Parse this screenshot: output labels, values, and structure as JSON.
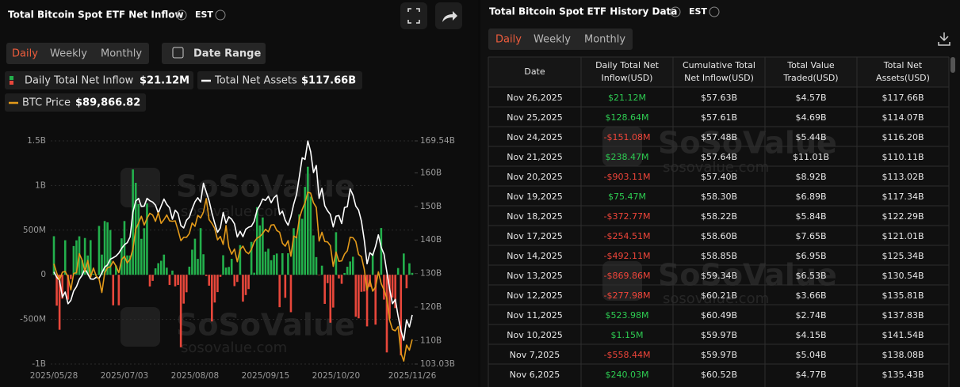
{
  "left_panel": {
    "title": "Total Bitcoin Spot ETF Net Inflow",
    "timezone": "EST",
    "tabs": [
      "Daily",
      "Weekly",
      "Monthly"
    ],
    "date_range": "Date Range",
    "legend_values": [
      "$21.12M",
      "$117.66B",
      "$89,866.82"
    ]
  },
  "watermark": {
    "brand": "SoSoValue",
    "url": "sosovalue.com"
  },
  "chart_data": {
    "type": "bar",
    "grid": true,
    "categories": [
      "2025/05/28",
      null,
      null,
      null,
      null,
      null,
      null,
      null,
      null,
      null,
      null,
      null,
      null,
      null,
      null,
      null,
      null,
      null,
      null,
      null,
      null,
      null,
      null,
      null,
      null,
      "2025/07/03",
      null,
      null,
      null,
      null,
      null,
      null,
      null,
      null,
      null,
      null,
      null,
      null,
      null,
      null,
      null,
      null,
      null,
      null,
      null,
      null,
      null,
      null,
      null,
      null,
      "2025/08/08",
      null,
      null,
      null,
      null,
      null,
      null,
      null,
      null,
      null,
      null,
      null,
      null,
      null,
      null,
      null,
      null,
      null,
      null,
      null,
      null,
      null,
      null,
      null,
      null,
      "2025/09/15",
      null,
      null,
      null,
      null,
      null,
      null,
      null,
      null,
      null,
      null,
      null,
      null,
      null,
      null,
      null,
      null,
      null,
      null,
      null,
      null,
      null,
      null,
      null,
      null,
      "2025/10/20",
      null,
      null,
      null,
      null,
      null,
      null,
      null,
      null,
      null,
      null,
      null,
      null,
      null,
      null,
      null,
      null,
      null,
      null,
      null,
      null,
      null,
      null,
      null,
      null,
      null,
      null,
      "2025/11/26"
    ],
    "ylim": [
      -1000,
      1500
    ],
    "yticks": [
      {
        "value": 1500,
        "label": "1.5B"
      },
      {
        "value": 1000,
        "label": "1B"
      },
      {
        "value": 500,
        "label": "500M"
      },
      0,
      {
        "value": -500,
        "label": "-500M"
      },
      {
        "value": -1000,
        "label": "-1B"
      }
    ],
    "y2lim": [
      103.03,
      169.54
    ],
    "y2ticks": [
      {
        "value": 169.54,
        "label": "169.54B"
      },
      {
        "value": 160,
        "label": "160B"
      },
      {
        "value": 150,
        "label": "150B"
      },
      {
        "value": 140,
        "label": "140B"
      },
      {
        "value": 130,
        "label": "130B"
      },
      {
        "value": 120,
        "label": "120B"
      },
      {
        "value": 110,
        "label": "110B"
      },
      {
        "value": 103.03,
        "label": "103.03B"
      }
    ],
    "y3lim": [
      84000,
      137000
    ],
    "series": [
      {
        "name": "Daily Total Net Inflow",
        "type": "bar",
        "color": "#23b04c",
        "negative_color": "#e8473b",
        "values": [
          432,
          -346,
          -616,
          -268,
          387,
          -278,
          -48,
          322,
          386,
          431,
          165,
          412,
          216,
          388,
          11,
          6,
          547,
          226,
          602,
          588,
          501,
          -342,
          102,
          -342,
          408,
          602,
          217,
          216,
          1180,
          1030,
          791,
          403,
          522,
          799,
          -131,
          -68,
          72,
          130,
          157,
          226,
          80,
          -114,
          47,
          -130,
          -114,
          -812,
          -323,
          -196,
          91,
          281,
          404,
          178,
          523,
          230,
          -14,
          -122,
          -523,
          -311,
          -194,
          -23,
          219,
          81,
          88,
          179,
          -127,
          -80,
          332,
          -301,
          -227,
          -160,
          368,
          23,
          757,
          553,
          642,
          260,
          292,
          163,
          222,
          238,
          -363,
          241,
          -258,
          241,
          -419,
          522,
          430,
          676,
          627,
          985,
          1210,
          875,
          441,
          198,
          -4,
          102,
          -326,
          -94,
          -537,
          -367,
          477,
          -41,
          -101,
          20,
          90,
          149,
          202,
          -470,
          -488,
          -191,
          -187,
          -578,
          -137,
          240.03,
          -558.44,
          1.15,
          523.98,
          -277.98,
          -869.86,
          -492.11,
          -254.51,
          -372.77,
          75.47,
          -903.11,
          238.47,
          -151.08,
          128.64,
          21.12
        ]
      },
      {
        "name": "Total Net Assets",
        "type": "line",
        "color": "#ffffff",
        "axis": "y2",
        "values": [
          130.5,
          128.9,
          128.0,
          123.0,
          124.5,
          121.0,
          122.0,
          124.8,
          126.1,
          128.3,
          129.5,
          131.4,
          129.9,
          128.4,
          128.3,
          128.9,
          128.6,
          130.2,
          131.9,
          132.6,
          134.3,
          134.7,
          135.2,
          136.1,
          137.5,
          138.6,
          139.2,
          140.9,
          148.3,
          151.6,
          152.4,
          150.0,
          150.1,
          152.4,
          151.7,
          151.3,
          150.4,
          148.0,
          150.1,
          152.2,
          150.6,
          149.6,
          146.2,
          148.9,
          147.9,
          144.3,
          143.6,
          145.9,
          146.8,
          149.3,
          151.4,
          152.6,
          151.3,
          156.9,
          154.3,
          151.7,
          148.1,
          145.0,
          142.3,
          143.6,
          148.2,
          145.0,
          146.9,
          146.2,
          144.8,
          140.9,
          142.6,
          141.0,
          143.2,
          143.8,
          144.1,
          145.6,
          148.9,
          150.3,
          152.2,
          151.8,
          153.0,
          151.1,
          152.6,
          153.4,
          147.6,
          148.6,
          145.9,
          144.4,
          147.0,
          150.7,
          153.6,
          158.9,
          164.5,
          164.0,
          169.5,
          166.3,
          160.1,
          162.2,
          152.4,
          155.4,
          150.2,
          148.7,
          147.6,
          143.9,
          147.1,
          147.3,
          144.9,
          149.7,
          149.9,
          155.2,
          153.4,
          150.1,
          148.9,
          145.6,
          140.0,
          132.9,
          136.2,
          135.43,
          138.08,
          141.54,
          137.83,
          135.81,
          130.54,
          125.34,
          121.01,
          122.29,
          117.34,
          113.02,
          110.11,
          116.2,
          114.07,
          117.66
        ]
      },
      {
        "name": "BTC Price",
        "type": "line",
        "color": "#e39a1a",
        "axis": "y3",
        "values": [
          107800,
          105600,
          104000,
          105800,
          106000,
          104700,
          101600,
          105500,
          105700,
          110200,
          108700,
          106000,
          108600,
          104600,
          106800,
          104900,
          104200,
          101000,
          105600,
          106900,
          107100,
          108400,
          107300,
          105700,
          108800,
          109600,
          108000,
          108900,
          111300,
          116000,
          117500,
          119100,
          117000,
          118600,
          119800,
          119400,
          117900,
          120000,
          117400,
          118300,
          119400,
          118000,
          117900,
          118000,
          115800,
          113300,
          114100,
          114100,
          115000,
          117500,
          116700,
          119300,
          118700,
          120100,
          123300,
          118300,
          117400,
          116200,
          113500,
          114300,
          112400,
          116900,
          111800,
          110100,
          111300,
          108300,
          111200,
          112000,
          110700,
          110200,
          111200,
          113000,
          113900,
          114300,
          115000,
          116000,
          115400,
          117000,
          117100,
          115700,
          115300,
          112700,
          112000,
          113300,
          109600,
          114400,
          114000,
          118600,
          120700,
          122300,
          124800,
          124600,
          122300,
          121200,
          113200,
          115300,
          113100,
          113000,
          112100,
          107200,
          110600,
          108400,
          108500,
          110100,
          110900,
          114100,
          114000,
          113100,
          110000,
          109500,
          106500,
          101600,
          103900,
          101300,
          102300,
          105900,
          103100,
          101600,
          99600,
          94400,
          92200,
          91900,
          92900,
          86600,
          84700,
          88500,
          87300,
          89866.82
        ]
      }
    ]
  },
  "history": {
    "title": "Total Bitcoin Spot ETF History Data",
    "timezone": "EST",
    "tabs": [
      "Daily",
      "Weekly",
      "Monthly"
    ],
    "headers": [
      [
        "Date"
      ],
      [
        "Daily Total Net",
        "Inflow(USD)"
      ],
      [
        "Cumulative Total",
        "Net Inflow(USD)"
      ],
      [
        "Total Value",
        "Traded(USD)"
      ],
      [
        "Total Net",
        "Assets(USD)"
      ]
    ],
    "rows": [
      [
        "Nov 26,2025",
        "$21.12M",
        "$57.63B",
        "$4.57B",
        "$117.66B"
      ],
      [
        "Nov 25,2025",
        "$128.64M",
        "$57.61B",
        "$4.69B",
        "$114.07B"
      ],
      [
        "Nov 24,2025",
        "-$151.08M",
        "$57.48B",
        "$5.44B",
        "$116.20B"
      ],
      [
        "Nov 21,2025",
        "$238.47M",
        "$57.64B",
        "$11.01B",
        "$110.11B"
      ],
      [
        "Nov 20,2025",
        "-$903.11M",
        "$57.40B",
        "$8.92B",
        "$113.02B"
      ],
      [
        "Nov 19,2025",
        "$75.47M",
        "$58.30B",
        "$6.89B",
        "$117.34B"
      ],
      [
        "Nov 18,2025",
        "-$372.77M",
        "$58.22B",
        "$5.84B",
        "$122.29B"
      ],
      [
        "Nov 17,2025",
        "-$254.51M",
        "$58.60B",
        "$7.65B",
        "$121.01B"
      ],
      [
        "Nov 14,2025",
        "-$492.11M",
        "$58.85B",
        "$6.95B",
        "$125.34B"
      ],
      [
        "Nov 13,2025",
        "-$869.86M",
        "$59.34B",
        "$6.53B",
        "$130.54B"
      ],
      [
        "Nov 12,2025",
        "-$277.98M",
        "$60.21B",
        "$3.66B",
        "$135.81B"
      ],
      [
        "Nov 11,2025",
        "$523.98M",
        "$60.49B",
        "$2.74B",
        "$137.83B"
      ],
      [
        "Nov 10,2025",
        "$1.15M",
        "$59.97B",
        "$4.15B",
        "$141.54B"
      ],
      [
        "Nov 7,2025",
        "-$558.44M",
        "$59.97B",
        "$5.04B",
        "$138.08B"
      ],
      [
        "Nov 6,2025",
        "$240.03M",
        "$60.52B",
        "$4.77B",
        "$135.43B"
      ]
    ]
  }
}
